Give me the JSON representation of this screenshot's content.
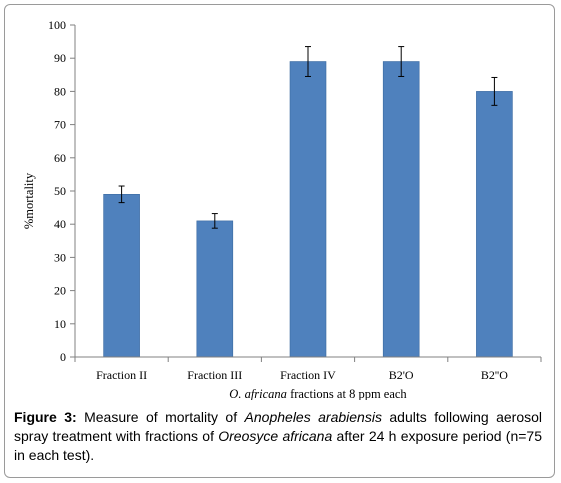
{
  "chart_data": {
    "type": "bar",
    "categories": [
      "Fraction II",
      "Fraction III",
      "Fraction IV",
      "B2'O",
      "B2''O"
    ],
    "values": [
      49,
      41,
      89,
      89,
      80
    ],
    "error": [
      2.5,
      2.2,
      4.5,
      4.5,
      4.2
    ],
    "ylabel": "%mortality",
    "xlabel_italic": "O. africana",
    "xlabel_rest": " fractions at 8 ppm each",
    "ylim": [
      0,
      100
    ],
    "yticks": [
      0,
      10,
      20,
      30,
      40,
      50,
      60,
      70,
      80,
      90,
      100
    ],
    "grid": false,
    "bar_color": "#4f81bd",
    "bar_border": "#3b6aa0"
  },
  "caption": {
    "label": "Figure 3:",
    "p1": " Measure of mortality of ",
    "species": "Anopheles arabiensis",
    "p2": " adults following aerosol spray treatment with fractions of ",
    "plant": "Oreosyce africana",
    "p3": " after 24 h exposure period (n=75 in each test)."
  }
}
